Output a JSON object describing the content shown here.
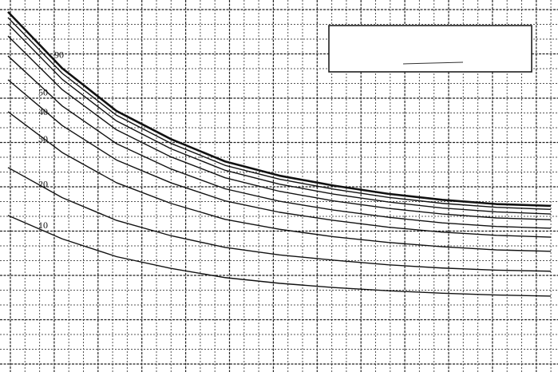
{
  "chart_data": {
    "type": "line",
    "x": [
      0,
      10,
      20,
      30,
      40,
      50,
      60,
      70,
      80,
      90,
      100
    ],
    "xlim": [
      0,
      100
    ],
    "ylim": [
      0,
      100
    ],
    "grid": true,
    "series": [
      {
        "name": "10",
        "color": "#111111",
        "values": [
          41.6,
          35,
          30,
          26.7,
          24.1,
          22.5,
          21.3,
          20.4,
          19.7,
          19.2,
          18.9
        ]
      },
      {
        "name": "20",
        "color": "#111111",
        "values": [
          55.1,
          46.6,
          40.2,
          35.9,
          32.6,
          30.5,
          29.0,
          27.7,
          26.8,
          26.2,
          25.9
        ]
      },
      {
        "name": "30",
        "color": "#111111",
        "values": [
          70.8,
          59.3,
          50.8,
          45.0,
          40.5,
          37.7,
          35.6,
          34.0,
          32.8,
          31.9,
          31.5
        ]
      },
      {
        "name": "40",
        "color": "#111111",
        "values": [
          79.8,
          66.9,
          57.2,
          50.8,
          45.7,
          42.5,
          40.2,
          38.3,
          36.9,
          36.0,
          35.5
        ]
      },
      {
        "name": "50",
        "color": "#111111",
        "values": [
          86.5,
          72.4,
          61.8,
          54.7,
          49.1,
          45.6,
          43.1,
          41.1,
          39.5,
          38.5,
          38.0
        ]
      },
      {
        "color": "#111111",
        "values": [
          92.1,
          77.0,
          65.7,
          58.1,
          52.2,
          48.4,
          45.7,
          43.6,
          42.0,
          40.9,
          40.4
        ]
      },
      {
        "color": "#111111",
        "values": [
          95.5,
          79.9,
          68.2,
          60.4,
          54.3,
          50.4,
          47.6,
          45.4,
          43.7,
          42.6,
          42.0
        ]
      },
      {
        "color": "#111111",
        "values": [
          97.3,
          81.6,
          69.8,
          61.9,
          55.7,
          51.8,
          49.0,
          46.7,
          45.0,
          43.9,
          43.3
        ]
      },
      {
        "name": "90",
        "color": "#111111",
        "values": [
          98.9,
          83.0,
          71.0,
          63.1,
          56.8,
          52.8,
          50.0,
          47.7,
          46.0,
          44.8,
          44.3
        ]
      }
    ]
  }
}
